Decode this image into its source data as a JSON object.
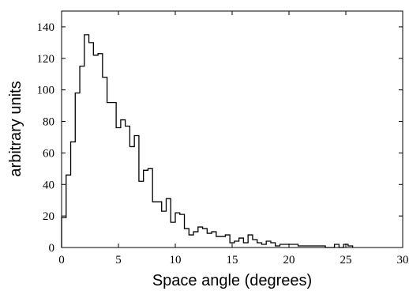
{
  "chart_data": {
    "type": "bar",
    "style": "step-histogram",
    "title": "",
    "xlabel": "Space angle (degrees)",
    "ylabel": "arbitrary units",
    "xlim": [
      0,
      30
    ],
    "ylim": [
      0,
      150
    ],
    "grid": false,
    "legend": "none",
    "bin_width": 0.4,
    "x_ticks": [
      0,
      5,
      10,
      15,
      20,
      25,
      30
    ],
    "y_ticks": [
      0,
      20,
      40,
      60,
      80,
      100,
      120,
      140
    ],
    "bin_starts": [
      0.0,
      0.4,
      0.8,
      1.2,
      1.6,
      2.0,
      2.4,
      2.8,
      3.2,
      3.6,
      4.0,
      4.4,
      4.8,
      5.2,
      5.6,
      6.0,
      6.4,
      6.8,
      7.2,
      7.6,
      8.0,
      8.4,
      8.8,
      9.2,
      9.6,
      10.0,
      10.4,
      10.8,
      11.2,
      11.6,
      12.0,
      12.4,
      12.8,
      13.2,
      13.6,
      14.0,
      14.4,
      14.8,
      15.2,
      15.6,
      16.0,
      16.4,
      16.8,
      17.2,
      17.6,
      18.0,
      18.4,
      18.8,
      19.2,
      19.6,
      20.0,
      20.4,
      20.8,
      21.2,
      21.6,
      22.0,
      22.4,
      22.8,
      23.2,
      23.6,
      24.0,
      24.4,
      24.8,
      25.2
    ],
    "values": [
      19,
      46,
      67,
      98,
      115,
      135,
      130,
      122,
      123,
      108,
      92,
      92,
      76,
      81,
      77,
      64,
      71,
      42,
      49,
      50,
      29,
      29,
      23,
      31,
      16,
      22,
      21,
      12,
      8,
      10,
      13,
      12,
      9,
      10,
      7,
      7,
      8,
      3,
      4,
      6,
      3,
      8,
      5,
      3,
      2,
      4,
      3,
      1,
      2,
      2,
      2,
      2,
      1,
      1,
      1,
      1,
      1,
      1,
      0,
      0,
      2,
      0,
      2,
      1
    ]
  }
}
